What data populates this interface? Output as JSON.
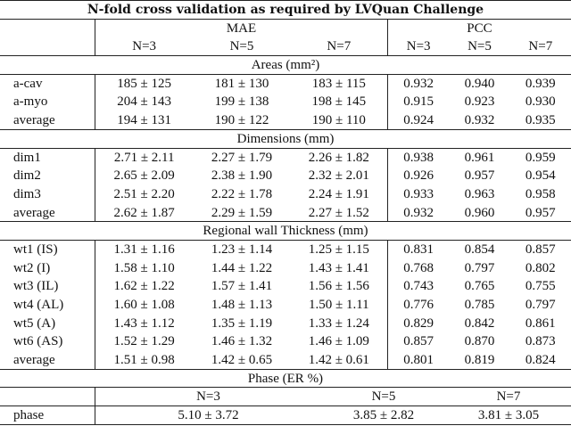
{
  "title": "N-fold cross validation as required by LVQuan Challenge",
  "header": {
    "groups": [
      "MAE",
      "PCC"
    ],
    "mae_cols": [
      "N=3",
      "N=5",
      "N=7"
    ],
    "pcc_cols": [
      "N=3",
      "N=5",
      "N=7"
    ]
  },
  "sections": [
    {
      "title": "Areas (mm²)",
      "rows": [
        [
          "a-cav",
          "185 ± 125",
          "181 ± 130",
          "183 ± 115",
          "0.932",
          "0.940",
          "0.939"
        ],
        [
          "a-myo",
          "204 ± 143",
          "199 ± 138",
          "198 ± 145",
          "0.915",
          "0.923",
          "0.930"
        ],
        [
          "average",
          "194 ± 131",
          "190 ± 122",
          "190 ± 110",
          "0.924",
          "0.932",
          "0.935"
        ]
      ]
    },
    {
      "title": "Dimensions (mm)",
      "rows": [
        [
          "dim1",
          "2.71 ± 2.11",
          "2.27 ± 1.79",
          "2.26 ± 1.82",
          "0.938",
          "0.961",
          "0.959"
        ],
        [
          "dim2",
          "2.65 ± 2.09",
          "2.38 ± 1.90",
          "2.32 ± 2.01",
          "0.926",
          "0.957",
          "0.954"
        ],
        [
          "dim3",
          "2.51 ± 2.20",
          "2.22 ± 1.78",
          "2.24 ± 1.91",
          "0.933",
          "0.963",
          "0.958"
        ],
        [
          "average",
          "2.62 ± 1.87",
          "2.29 ± 1.59",
          "2.27 ± 1.52",
          "0.932",
          "0.960",
          "0.957"
        ]
      ]
    },
    {
      "title": "Regional wall Thickness (mm)",
      "rows": [
        [
          "wt1 (IS)",
          "1.31 ± 1.16",
          "1.23 ± 1.14",
          "1.25 ± 1.15",
          "0.831",
          "0.854",
          "0.857"
        ],
        [
          "wt2 (I)",
          "1.58 ± 1.10",
          "1.44 ± 1.22",
          "1.43 ± 1.41",
          "0.768",
          "0.797",
          "0.802"
        ],
        [
          "wt3 (IL)",
          "1.62 ± 1.22",
          "1.57 ± 1.41",
          "1.56 ± 1.56",
          "0.743",
          "0.765",
          "0.755"
        ],
        [
          "wt4 (AL)",
          "1.60 ± 1.08",
          "1.48 ± 1.13",
          "1.50 ± 1.11",
          "0.776",
          "0.785",
          "0.797"
        ],
        [
          "wt5 (A)",
          "1.43 ± 1.12",
          "1.35 ± 1.19",
          "1.33 ± 1.24",
          "0.829",
          "0.842",
          "0.861"
        ],
        [
          "wt6 (AS)",
          "1.52 ± 1.29",
          "1.46 ± 1.32",
          "1.46 ± 1.09",
          "0.857",
          "0.870",
          "0.873"
        ],
        [
          "average",
          "1.51 ± 0.98",
          "1.42 ± 0.65",
          "1.42 ± 0.61",
          "0.801",
          "0.819",
          "0.824"
        ]
      ]
    }
  ],
  "phase": {
    "title": "Phase (ER %)",
    "cols": [
      "N=3",
      "N=5",
      "N=7"
    ],
    "row": [
      "phase",
      "5.10 ± 3.72",
      "3.85 ± 2.82",
      "3.81 ± 3.05"
    ]
  }
}
